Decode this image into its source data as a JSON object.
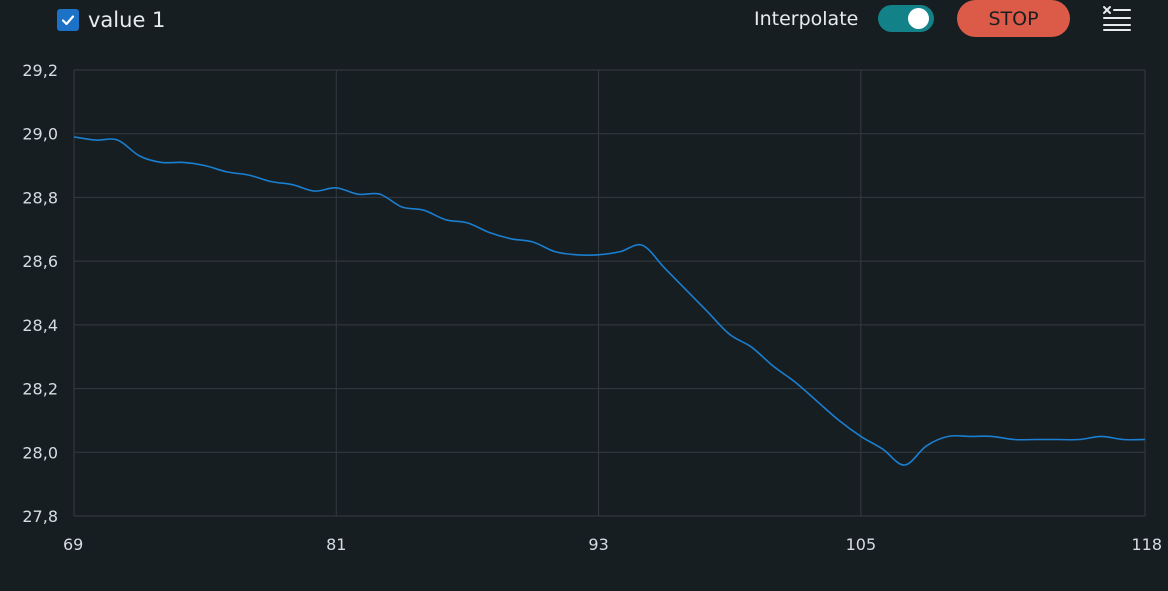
{
  "legend": {
    "series_label": "value 1",
    "checked": true
  },
  "controls": {
    "interpolate_label": "Interpolate",
    "interpolate_on": true,
    "stop_label": "STOP",
    "clear_icon": "clear-list-icon"
  },
  "colors": {
    "background": "#171e22",
    "grid": "#343b40",
    "line": "#1a7fd0",
    "checkbox": "#1b72c7",
    "toggle": "#138288",
    "stop_button": "#dc5a48"
  },
  "chart_data": {
    "type": "line",
    "title": "",
    "xlabel": "",
    "ylabel": "",
    "xlim": [
      69,
      118
    ],
    "ylim": [
      27.8,
      29.2
    ],
    "x_ticks": [
      "69",
      "81",
      "93",
      "105",
      "118"
    ],
    "y_ticks": [
      "27,8",
      "28,0",
      "28,2",
      "28,4",
      "28,6",
      "28,8",
      "29,0",
      "29,2"
    ],
    "grid": true,
    "series": [
      {
        "name": "value 1",
        "x": [
          69,
          70,
          71,
          72,
          73,
          74,
          75,
          76,
          77,
          78,
          79,
          80,
          81,
          82,
          83,
          84,
          85,
          86,
          87,
          88,
          89,
          90,
          91,
          92,
          93,
          94,
          95,
          96,
          97,
          98,
          99,
          100,
          101,
          102,
          103,
          104,
          105,
          106,
          107,
          108,
          109,
          110,
          111,
          112,
          113,
          114,
          115,
          116,
          117,
          118
        ],
        "values": [
          28.99,
          28.98,
          28.98,
          28.93,
          28.91,
          28.91,
          28.9,
          28.88,
          28.87,
          28.85,
          28.84,
          28.82,
          28.83,
          28.81,
          28.81,
          28.77,
          28.76,
          28.73,
          28.72,
          28.69,
          28.67,
          28.66,
          28.63,
          28.62,
          28.62,
          28.63,
          28.65,
          28.58,
          28.51,
          28.44,
          28.37,
          28.33,
          28.27,
          28.22,
          28.16,
          28.1,
          28.05,
          28.01,
          27.96,
          28.02,
          28.05,
          28.05,
          28.05,
          28.04,
          28.04,
          28.04,
          28.04,
          28.05,
          28.04,
          28.04
        ]
      }
    ]
  }
}
